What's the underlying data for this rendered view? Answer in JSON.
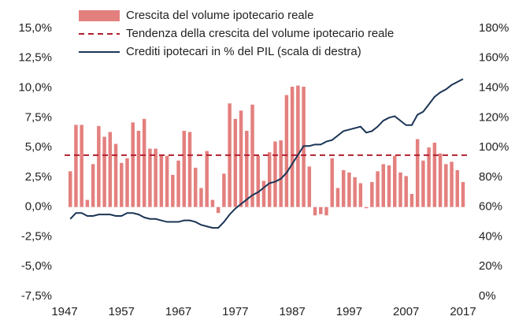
{
  "chart_data": {
    "type": "bar",
    "x": [
      1948,
      1949,
      1950,
      1951,
      1952,
      1953,
      1954,
      1955,
      1956,
      1957,
      1958,
      1959,
      1960,
      1961,
      1962,
      1963,
      1964,
      1965,
      1966,
      1967,
      1968,
      1969,
      1970,
      1971,
      1972,
      1973,
      1974,
      1975,
      1976,
      1977,
      1978,
      1979,
      1980,
      1981,
      1982,
      1983,
      1984,
      1985,
      1986,
      1987,
      1988,
      1989,
      1990,
      1991,
      1992,
      1993,
      1994,
      1995,
      1996,
      1997,
      1998,
      1999,
      2000,
      2001,
      2002,
      2003,
      2004,
      2005,
      2006,
      2007,
      2008,
      2009,
      2010,
      2011,
      2012,
      2013,
      2014,
      2015,
      2016,
      2017
    ],
    "series": [
      {
        "name": "Crescita del volume ipotecario reale",
        "type": "bar",
        "color": "#e3807e",
        "values": [
          3.0,
          6.9,
          6.9,
          0.6,
          3.6,
          6.8,
          5.9,
          6.3,
          5.3,
          3.7,
          4.1,
          7.1,
          6.4,
          7.4,
          4.9,
          4.9,
          4.4,
          4.3,
          2.7,
          3.9,
          6.4,
          6.3,
          3.3,
          1.6,
          4.7,
          0.6,
          -0.5,
          2.8,
          8.7,
          7.4,
          8.1,
          6.4,
          8.6,
          4.3,
          2.2,
          4.6,
          5.5,
          5.6,
          9.4,
          10.1,
          10.2,
          10.1,
          3.4,
          -0.7,
          -0.6,
          -0.7,
          4.1,
          1.6,
          3.1,
          2.9,
          2.5,
          2.0,
          -0.1,
          2.1,
          3.0,
          3.6,
          3.5,
          4.3,
          2.9,
          2.6,
          1.1,
          5.7,
          3.9,
          5.0,
          5.4,
          4.5,
          3.6,
          3.8,
          3.1,
          2.1
        ]
      },
      {
        "name": "Tendenza della crescita del volume ipotecario reale",
        "type": "hline",
        "style": "dashed",
        "color": "#b0202f",
        "value": 4.35
      },
      {
        "name": "Crediti ipotecari in % del PIL (scala di destra)",
        "type": "line",
        "axis": "y2",
        "color": "#1b3556",
        "values": [
          52,
          56,
          56,
          54,
          54,
          55,
          55,
          55,
          54,
          54,
          56,
          56,
          55,
          53,
          52,
          52,
          51,
          50,
          50,
          50,
          51,
          51,
          50,
          48,
          47,
          46,
          46,
          50,
          55,
          59,
          62,
          65,
          68,
          70,
          73,
          76,
          77,
          79,
          83,
          89,
          95,
          101,
          101,
          102,
          102,
          104,
          105,
          108,
          111,
          112,
          113,
          114,
          110,
          111,
          114,
          118,
          120,
          121,
          118,
          115,
          115,
          122,
          124,
          129,
          134,
          137,
          139,
          142,
          144,
          146
        ]
      }
    ],
    "xlim": [
      1947,
      2017
    ],
    "xticks": [
      1947,
      1957,
      1967,
      1977,
      1987,
      1997,
      2007,
      2017
    ],
    "ylim": [
      -7.5,
      15
    ],
    "yticks": [
      {
        "value": -7.5,
        "label": "-7,5%"
      },
      {
        "value": -5,
        "label": "-5,0%"
      },
      {
        "value": -2.5,
        "label": "-2,5%"
      },
      {
        "value": 0,
        "label": "0,0%"
      },
      {
        "value": 2.5,
        "label": "2,5%"
      },
      {
        "value": 5,
        "label": "5,0%"
      },
      {
        "value": 7.5,
        "label": "7,5%"
      },
      {
        "value": 10,
        "label": "10,0%"
      },
      {
        "value": 12.5,
        "label": "12,5%"
      },
      {
        "value": 15,
        "label": "15,0%"
      }
    ],
    "y2lim": [
      0,
      180
    ],
    "y2ticks": [
      {
        "value": 0,
        "label": "0%"
      },
      {
        "value": 20,
        "label": "20%"
      },
      {
        "value": 40,
        "label": "40%"
      },
      {
        "value": 60,
        "label": "60%"
      },
      {
        "value": 80,
        "label": "80%"
      },
      {
        "value": 100,
        "label": "100%"
      },
      {
        "value": 120,
        "label": "120%"
      },
      {
        "value": 140,
        "label": "140%"
      },
      {
        "value": 160,
        "label": "160%"
      },
      {
        "value": 180,
        "label": "180%"
      }
    ],
    "legend": "top-left"
  }
}
